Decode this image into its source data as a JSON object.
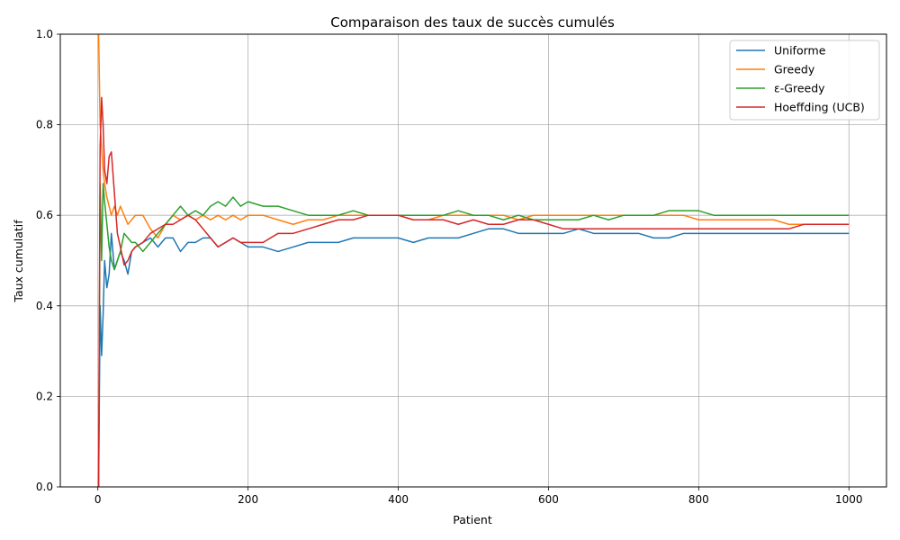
{
  "chart_data": {
    "type": "line",
    "title": "Comparaison des taux de succès cumulés",
    "xlabel": "Patient",
    "ylabel": "Taux cumulatif",
    "xlim": [
      -50,
      1050
    ],
    "ylim": [
      0,
      1
    ],
    "xticks": [
      0,
      200,
      400,
      600,
      800,
      1000
    ],
    "yticks": [
      0.0,
      0.2,
      0.4,
      0.6,
      0.8,
      1.0
    ],
    "xtick_labels": [
      "0",
      "200",
      "400",
      "600",
      "800",
      "1000"
    ],
    "ytick_labels": [
      "0.0",
      "0.2",
      "0.4",
      "0.6",
      "0.8",
      "1.0"
    ],
    "grid": true,
    "legend": "top-right",
    "series": [
      {
        "name": "Uniforme",
        "color": "#1f77b4",
        "x": [
          1,
          3,
          5,
          7,
          9,
          12,
          15,
          18,
          22,
          26,
          30,
          35,
          40,
          45,
          50,
          60,
          70,
          80,
          90,
          100,
          110,
          120,
          130,
          140,
          150,
          160,
          170,
          180,
          190,
          200,
          220,
          240,
          260,
          280,
          300,
          320,
          340,
          360,
          380,
          400,
          420,
          440,
          460,
          480,
          500,
          520,
          540,
          560,
          580,
          600,
          620,
          640,
          660,
          680,
          700,
          720,
          740,
          760,
          780,
          800,
          820,
          840,
          860,
          880,
          900,
          920,
          940,
          960,
          980,
          1000
        ],
        "y": [
          0.0,
          0.4,
          0.29,
          0.38,
          0.5,
          0.44,
          0.47,
          0.56,
          0.48,
          0.5,
          0.52,
          0.5,
          0.47,
          0.52,
          0.53,
          0.54,
          0.55,
          0.53,
          0.55,
          0.55,
          0.52,
          0.54,
          0.54,
          0.55,
          0.55,
          0.53,
          0.54,
          0.55,
          0.54,
          0.53,
          0.53,
          0.52,
          0.53,
          0.54,
          0.54,
          0.54,
          0.55,
          0.55,
          0.55,
          0.55,
          0.54,
          0.55,
          0.55,
          0.55,
          0.56,
          0.57,
          0.57,
          0.56,
          0.56,
          0.56,
          0.56,
          0.57,
          0.56,
          0.56,
          0.56,
          0.56,
          0.55,
          0.55,
          0.56,
          0.56,
          0.56,
          0.56,
          0.56,
          0.56,
          0.56,
          0.56,
          0.56,
          0.56,
          0.56,
          0.56
        ]
      },
      {
        "name": "Greedy",
        "color": "#ff7f0e",
        "x": [
          1,
          3,
          5,
          7,
          9,
          12,
          15,
          18,
          22,
          26,
          30,
          35,
          40,
          45,
          50,
          60,
          70,
          80,
          90,
          100,
          110,
          120,
          130,
          140,
          150,
          160,
          170,
          180,
          190,
          200,
          220,
          240,
          260,
          280,
          300,
          320,
          340,
          360,
          380,
          400,
          420,
          440,
          460,
          480,
          500,
          520,
          540,
          560,
          580,
          600,
          620,
          640,
          660,
          680,
          700,
          720,
          740,
          760,
          780,
          800,
          820,
          840,
          860,
          880,
          900,
          920,
          940,
          960,
          980,
          1000
        ],
        "y": [
          1.0,
          0.8,
          0.75,
          0.7,
          0.67,
          0.64,
          0.62,
          0.6,
          0.62,
          0.6,
          0.62,
          0.6,
          0.58,
          0.59,
          0.6,
          0.6,
          0.57,
          0.55,
          0.58,
          0.6,
          0.59,
          0.6,
          0.59,
          0.6,
          0.59,
          0.6,
          0.59,
          0.6,
          0.59,
          0.6,
          0.6,
          0.59,
          0.58,
          0.59,
          0.59,
          0.6,
          0.6,
          0.6,
          0.6,
          0.6,
          0.59,
          0.59,
          0.6,
          0.6,
          0.6,
          0.6,
          0.6,
          0.59,
          0.6,
          0.6,
          0.6,
          0.6,
          0.6,
          0.6,
          0.6,
          0.6,
          0.6,
          0.6,
          0.6,
          0.59,
          0.59,
          0.59,
          0.59,
          0.59,
          0.59,
          0.58,
          0.58,
          0.58,
          0.58,
          0.58
        ]
      },
      {
        "name": "ε-Greedy",
        "color": "#2ca02c",
        "x": [
          1,
          3,
          5,
          7,
          9,
          12,
          15,
          18,
          22,
          26,
          30,
          35,
          40,
          45,
          50,
          60,
          70,
          80,
          90,
          100,
          110,
          120,
          130,
          140,
          150,
          160,
          170,
          180,
          190,
          200,
          220,
          240,
          260,
          280,
          300,
          320,
          340,
          360,
          380,
          400,
          420,
          440,
          460,
          480,
          500,
          520,
          540,
          560,
          580,
          600,
          620,
          640,
          660,
          680,
          700,
          720,
          740,
          760,
          780,
          800,
          820,
          840,
          860,
          880,
          900,
          920,
          940,
          960,
          980,
          1000
        ],
        "y": [
          0.0,
          0.67,
          0.5,
          0.67,
          0.63,
          0.58,
          0.53,
          0.5,
          0.48,
          0.5,
          0.52,
          0.56,
          0.55,
          0.54,
          0.54,
          0.52,
          0.54,
          0.56,
          0.58,
          0.6,
          0.62,
          0.6,
          0.61,
          0.6,
          0.62,
          0.63,
          0.62,
          0.64,
          0.62,
          0.63,
          0.62,
          0.62,
          0.61,
          0.6,
          0.6,
          0.6,
          0.61,
          0.6,
          0.6,
          0.6,
          0.6,
          0.6,
          0.6,
          0.61,
          0.6,
          0.6,
          0.59,
          0.6,
          0.59,
          0.59,
          0.59,
          0.59,
          0.6,
          0.59,
          0.6,
          0.6,
          0.6,
          0.61,
          0.61,
          0.61,
          0.6,
          0.6,
          0.6,
          0.6,
          0.6,
          0.6,
          0.6,
          0.6,
          0.6,
          0.6
        ]
      },
      {
        "name": "Hoeffding (UCB)",
        "color": "#d62728",
        "x": [
          1,
          3,
          5,
          7,
          9,
          12,
          15,
          18,
          22,
          26,
          30,
          35,
          40,
          45,
          50,
          60,
          70,
          80,
          90,
          100,
          110,
          120,
          130,
          140,
          150,
          160,
          170,
          180,
          190,
          200,
          220,
          240,
          260,
          280,
          300,
          320,
          340,
          360,
          380,
          400,
          420,
          440,
          460,
          480,
          500,
          520,
          540,
          560,
          580,
          600,
          620,
          640,
          660,
          680,
          700,
          720,
          740,
          760,
          780,
          800,
          820,
          840,
          860,
          880,
          900,
          920,
          940,
          960,
          980,
          1000
        ],
        "y": [
          0.0,
          0.75,
          0.86,
          0.8,
          0.7,
          0.67,
          0.73,
          0.74,
          0.65,
          0.56,
          0.53,
          0.49,
          0.5,
          0.52,
          0.53,
          0.54,
          0.56,
          0.57,
          0.58,
          0.58,
          0.59,
          0.6,
          0.59,
          0.57,
          0.55,
          0.53,
          0.54,
          0.55,
          0.54,
          0.54,
          0.54,
          0.56,
          0.56,
          0.57,
          0.58,
          0.59,
          0.59,
          0.6,
          0.6,
          0.6,
          0.59,
          0.59,
          0.59,
          0.58,
          0.59,
          0.58,
          0.58,
          0.59,
          0.59,
          0.58,
          0.57,
          0.57,
          0.57,
          0.57,
          0.57,
          0.57,
          0.57,
          0.57,
          0.57,
          0.57,
          0.57,
          0.57,
          0.57,
          0.57,
          0.57,
          0.57,
          0.58,
          0.58,
          0.58,
          0.58
        ]
      }
    ]
  }
}
